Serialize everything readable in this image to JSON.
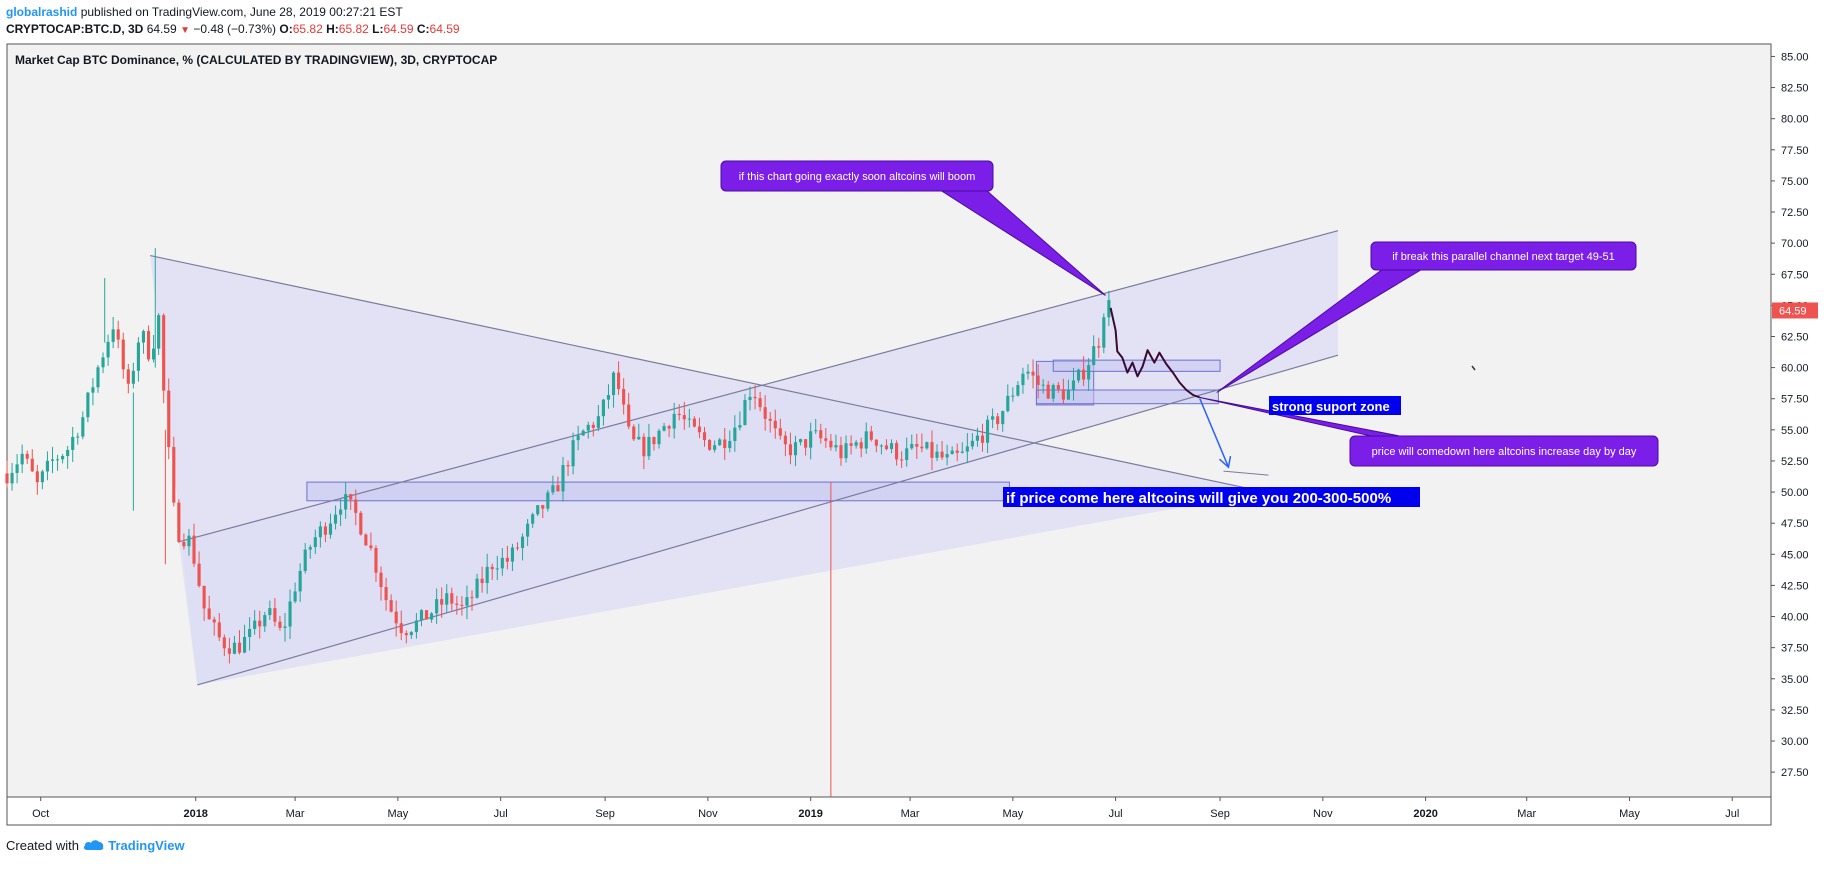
{
  "header": {
    "author": "globalrashid",
    "published": "published on TradingView.com, June 28, 2019 00:27:21 EST",
    "symbol": "CRYPTOCAP:BTC.D, 3D",
    "last": "64.59",
    "change_arrow": "▼",
    "change": "−0.48 (−0.73%)",
    "o_label": "O:",
    "o_value": "65.82",
    "h_label": "H:",
    "h_value": "65.82",
    "l_label": "L:",
    "l_value": "64.59",
    "c_label": "C:",
    "c_value": "64.59"
  },
  "footer": {
    "created_with": "Created with",
    "brand": "TradingView",
    "logo_icon": "tradingview-cloud-icon"
  },
  "colors": {
    "up": "#26a69a",
    "down": "#ef5350",
    "channel_fill": "#dcdcf4",
    "channel_line": "#7b7b9e",
    "callout": "#7b1fe8",
    "label_box": "#0000ee",
    "price_tag": "#ef5350",
    "plot_bg": "#f2f2f2"
  },
  "chart_data": {
    "type": "candlestick",
    "title": "Market Cap BTC Dominance, % (CALCULATED BY TRADINGVIEW), 3D, CRYPTOCAP",
    "y_axis": {
      "ylim": [
        25.5,
        86.0
      ],
      "ticks": [
        "85.00",
        "82.50",
        "80.00",
        "77.50",
        "75.00",
        "72.50",
        "70.00",
        "67.50",
        "65.00",
        "62.50",
        "60.00",
        "57.50",
        "55.00",
        "52.50",
        "50.00",
        "47.50",
        "45.00",
        "42.50",
        "40.00",
        "37.50",
        "35.00",
        "32.50",
        "30.00",
        "27.50"
      ],
      "last_price_label": "64.59",
      "last_price": 64.59
    },
    "x_axis": {
      "xlim": [
        "2017-09-11",
        "2020-07-24"
      ],
      "ticks": [
        {
          "label": "Oct",
          "date": "2017-10-01",
          "bold": false
        },
        {
          "label": "2018",
          "date": "2018-01-01",
          "bold": true
        },
        {
          "label": "Mar",
          "date": "2018-03-01",
          "bold": false
        },
        {
          "label": "May",
          "date": "2018-05-01",
          "bold": false
        },
        {
          "label": "Jul",
          "date": "2018-07-01",
          "bold": false
        },
        {
          "label": "Sep",
          "date": "2018-09-01",
          "bold": false
        },
        {
          "label": "Nov",
          "date": "2018-11-01",
          "bold": false
        },
        {
          "label": "2019",
          "date": "2019-01-01",
          "bold": true
        },
        {
          "label": "Mar",
          "date": "2019-03-01",
          "bold": false
        },
        {
          "label": "May",
          "date": "2019-05-01",
          "bold": false
        },
        {
          "label": "Jul",
          "date": "2019-07-01",
          "bold": false
        },
        {
          "label": "Sep",
          "date": "2019-09-01",
          "bold": false
        },
        {
          "label": "Nov",
          "date": "2019-11-01",
          "bold": false
        },
        {
          "label": "2020",
          "date": "2020-01-01",
          "bold": true
        },
        {
          "label": "Mar",
          "date": "2020-03-01",
          "bold": false
        },
        {
          "label": "May",
          "date": "2020-05-01",
          "bold": false
        },
        {
          "label": "Jul",
          "date": "2020-07-01",
          "bold": false
        }
      ]
    },
    "price_path": [
      [
        "2017-09-11",
        51.5
      ],
      [
        "2017-09-20",
        53.0
      ],
      [
        "2017-09-29",
        50.5
      ],
      [
        "2017-10-08",
        52.5
      ],
      [
        "2017-10-17",
        53.5
      ],
      [
        "2017-10-26",
        56.0
      ],
      [
        "2017-11-04",
        60.0
      ],
      [
        "2017-11-13",
        63.5
      ],
      [
        "2017-11-22",
        58.0
      ],
      [
        "2017-11-29",
        63.0
      ],
      [
        "2017-12-05",
        61.0
      ],
      [
        "2017-12-10",
        64.0
      ],
      [
        "2017-12-14",
        56.0
      ],
      [
        "2017-12-20",
        47.0
      ],
      [
        "2017-12-29",
        46.0
      ],
      [
        "2018-01-07",
        40.0
      ],
      [
        "2018-01-16",
        38.0
      ],
      [
        "2018-01-25",
        37.5
      ],
      [
        "2018-02-03",
        38.5
      ],
      [
        "2018-02-12",
        40.5
      ],
      [
        "2018-02-21",
        38.5
      ],
      [
        "2018-03-02",
        43.0
      ],
      [
        "2018-03-11",
        46.0
      ],
      [
        "2018-03-20",
        47.5
      ],
      [
        "2018-03-29",
        49.5
      ],
      [
        "2018-04-07",
        48.0
      ],
      [
        "2018-04-16",
        45.0
      ],
      [
        "2018-04-25",
        41.0
      ],
      [
        "2018-05-04",
        39.0
      ],
      [
        "2018-05-13",
        39.5
      ],
      [
        "2018-05-22",
        40.5
      ],
      [
        "2018-05-31",
        41.5
      ],
      [
        "2018-06-09",
        40.5
      ],
      [
        "2018-06-18",
        42.5
      ],
      [
        "2018-06-27",
        44.5
      ],
      [
        "2018-07-06",
        44.5
      ],
      [
        "2018-07-15",
        46.5
      ],
      [
        "2018-07-24",
        48.5
      ],
      [
        "2018-08-02",
        50.0
      ],
      [
        "2018-08-11",
        53.0
      ],
      [
        "2018-08-20",
        55.0
      ],
      [
        "2018-08-29",
        56.0
      ],
      [
        "2018-09-07",
        59.5
      ],
      [
        "2018-09-16",
        54.0
      ],
      [
        "2018-09-25",
        53.5
      ],
      [
        "2018-10-04",
        55.0
      ],
      [
        "2018-10-13",
        56.5
      ],
      [
        "2018-10-22",
        55.0
      ],
      [
        "2018-10-31",
        54.0
      ],
      [
        "2018-11-09",
        54.0
      ],
      [
        "2018-11-18",
        55.5
      ],
      [
        "2018-11-27",
        58.5
      ],
      [
        "2018-12-06",
        56.0
      ],
      [
        "2018-12-15",
        53.5
      ],
      [
        "2018-12-24",
        53.5
      ],
      [
        "2019-01-02",
        54.5
      ],
      [
        "2019-01-11",
        54.0
      ],
      [
        "2019-01-20",
        53.0
      ],
      [
        "2019-01-29",
        54.0
      ],
      [
        "2019-02-07",
        54.5
      ],
      [
        "2019-02-16",
        53.5
      ],
      [
        "2019-02-25",
        53.0
      ],
      [
        "2019-03-06",
        53.5
      ],
      [
        "2019-03-15",
        53.0
      ],
      [
        "2019-03-24",
        52.5
      ],
      [
        "2019-04-02",
        53.0
      ],
      [
        "2019-04-11",
        54.5
      ],
      [
        "2019-04-20",
        55.5
      ],
      [
        "2019-04-29",
        57.5
      ],
      [
        "2019-05-08",
        60.0
      ],
      [
        "2019-05-17",
        58.5
      ],
      [
        "2019-05-26",
        58.0
      ],
      [
        "2019-06-04",
        58.0
      ],
      [
        "2019-06-13",
        60.0
      ],
      [
        "2019-06-22",
        62.5
      ],
      [
        "2019-06-25",
        65.8
      ],
      [
        "2019-06-28",
        64.59
      ]
    ],
    "trend_lines": [
      {
        "name": "descending-triangle-upper",
        "from": [
          "2017-12-05",
          69.0
        ],
        "to": [
          "2019-09-28",
          50.0
        ]
      },
      {
        "name": "channel-upper",
        "from": [
          "2017-12-22",
          46.0
        ],
        "to": [
          "2019-11-10",
          71.0
        ]
      },
      {
        "name": "channel-lower",
        "from": [
          "2018-01-02",
          34.5
        ],
        "to": [
          "2019-11-10",
          61.0
        ]
      }
    ],
    "vertical_line": {
      "date": "2019-01-13",
      "color": "#ef5350"
    },
    "zones": [
      {
        "name": "support-zone-50",
        "from": [
          "2018-03-08",
          49.3
        ],
        "to": [
          "2019-04-29",
          50.8
        ]
      },
      {
        "name": "consolidation-box",
        "from": [
          "2019-05-15",
          57.0
        ],
        "to": [
          "2019-06-18",
          60.5
        ]
      },
      {
        "name": "support-zone-58",
        "from": [
          "2019-05-15",
          57.1
        ],
        "to": [
          "2019-08-31",
          58.2
        ]
      },
      {
        "name": "resistance-zone-60",
        "from": [
          "2019-05-25",
          59.7
        ],
        "to": [
          "2019-09-01",
          60.6
        ]
      }
    ],
    "annotations": [
      {
        "text": "if this chart going exactly soon altcoins will boom",
        "style": "callout",
        "anchor": [
          "2019-06-25",
          65.8
        ]
      },
      {
        "text": "if break this parallel channel next target 49-51",
        "style": "callout",
        "anchor": [
          "2019-08-30",
          58.0
        ]
      },
      {
        "text": "price will comedown here altcoins increase day by day",
        "style": "callout",
        "anchor": [
          "2019-08-20",
          57.6
        ]
      },
      {
        "text": "strong suport zone",
        "style": "label"
      },
      {
        "text": "if price come here altcoins will give you 200-300-500%",
        "style": "label"
      }
    ]
  }
}
